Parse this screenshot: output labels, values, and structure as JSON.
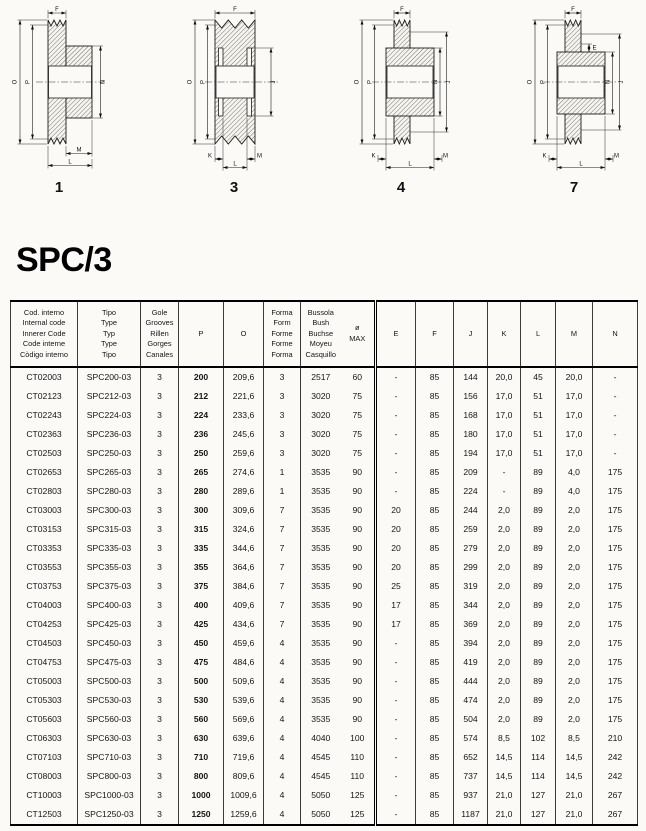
{
  "page": {
    "title": "SPC/3"
  },
  "diagrams": {
    "d1": {
      "number": "1",
      "f": "F",
      "o": "O",
      "p": "P",
      "n": "N",
      "m": "M",
      "l": "L"
    },
    "d3": {
      "number": "3",
      "f": "F",
      "o": "O",
      "p": "P",
      "j": "J",
      "k": "K",
      "l": "L",
      "m": "M"
    },
    "d4": {
      "number": "4",
      "f": "F",
      "o": "O",
      "p": "P",
      "n": "N",
      "j": "J",
      "k": "K",
      "l": "L",
      "m": "M"
    },
    "d7": {
      "number": "7",
      "f": "F",
      "e": "E",
      "o": "O",
      "p": "P",
      "n": "N",
      "j": "J",
      "k": "K",
      "l": "L",
      "m": "M"
    }
  },
  "table": {
    "columns": [
      {
        "id": "code",
        "lines": [
          "Cod. interno",
          "Internal code",
          "Innerer Code",
          "Code interne",
          "Còdigo interno"
        ]
      },
      {
        "id": "type",
        "lines": [
          "Tipo",
          "Type",
          "Typ",
          "Type",
          "Tipo"
        ]
      },
      {
        "id": "grooves",
        "lines": [
          "Gole",
          "Grooves",
          "Rillen",
          "Gorges",
          "Canales"
        ]
      },
      {
        "id": "p",
        "lines": [
          "P"
        ]
      },
      {
        "id": "o",
        "lines": [
          "O"
        ]
      },
      {
        "id": "form",
        "lines": [
          "Forma",
          "Form",
          "Forme",
          "Forme",
          "Forma"
        ]
      },
      {
        "id": "bush",
        "lines": [
          "Bussola",
          "Bush",
          "Buchse",
          "Moyeu",
          "Casquillo"
        ]
      },
      {
        "id": "dmax",
        "lines": [
          "ø",
          "MAX"
        ]
      },
      {
        "id": "e",
        "lines": [
          "E"
        ]
      },
      {
        "id": "f",
        "lines": [
          "F"
        ]
      },
      {
        "id": "j",
        "lines": [
          "J"
        ]
      },
      {
        "id": "k",
        "lines": [
          "K"
        ]
      },
      {
        "id": "l",
        "lines": [
          "L"
        ]
      },
      {
        "id": "m",
        "lines": [
          "M"
        ]
      },
      {
        "id": "n",
        "lines": [
          "N"
        ]
      }
    ],
    "rows": [
      [
        "CT02003",
        "SPC200-03",
        "3",
        "200",
        "209,6",
        "3",
        "2517",
        "60",
        "-",
        "85",
        "144",
        "20,0",
        "45",
        "20,0",
        "-"
      ],
      [
        "CT02123",
        "SPC212-03",
        "3",
        "212",
        "221,6",
        "3",
        "3020",
        "75",
        "-",
        "85",
        "156",
        "17,0",
        "51",
        "17,0",
        "-"
      ],
      [
        "CT02243",
        "SPC224-03",
        "3",
        "224",
        "233,6",
        "3",
        "3020",
        "75",
        "-",
        "85",
        "168",
        "17,0",
        "51",
        "17,0",
        "-"
      ],
      [
        "CT02363",
        "SPC236-03",
        "3",
        "236",
        "245,6",
        "3",
        "3020",
        "75",
        "-",
        "85",
        "180",
        "17,0",
        "51",
        "17,0",
        "-"
      ],
      [
        "CT02503",
        "SPC250-03",
        "3",
        "250",
        "259,6",
        "3",
        "3020",
        "75",
        "-",
        "85",
        "194",
        "17,0",
        "51",
        "17,0",
        "-"
      ],
      [
        "CT02653",
        "SPC265-03",
        "3",
        "265",
        "274,6",
        "1",
        "3535",
        "90",
        "-",
        "85",
        "209",
        "-",
        "89",
        "4,0",
        "175"
      ],
      [
        "CT02803",
        "SPC280-03",
        "3",
        "280",
        "289,6",
        "1",
        "3535",
        "90",
        "-",
        "85",
        "224",
        "-",
        "89",
        "4,0",
        "175"
      ],
      [
        "CT03003",
        "SPC300-03",
        "3",
        "300",
        "309,6",
        "7",
        "3535",
        "90",
        "20",
        "85",
        "244",
        "2,0",
        "89",
        "2,0",
        "175"
      ],
      [
        "CT03153",
        "SPC315-03",
        "3",
        "315",
        "324,6",
        "7",
        "3535",
        "90",
        "20",
        "85",
        "259",
        "2,0",
        "89",
        "2,0",
        "175"
      ],
      [
        "CT03353",
        "SPC335-03",
        "3",
        "335",
        "344,6",
        "7",
        "3535",
        "90",
        "20",
        "85",
        "279",
        "2,0",
        "89",
        "2,0",
        "175"
      ],
      [
        "CT03553",
        "SPC355-03",
        "3",
        "355",
        "364,6",
        "7",
        "3535",
        "90",
        "20",
        "85",
        "299",
        "2,0",
        "89",
        "2,0",
        "175"
      ],
      [
        "CT03753",
        "SPC375-03",
        "3",
        "375",
        "384,6",
        "7",
        "3535",
        "90",
        "25",
        "85",
        "319",
        "2,0",
        "89",
        "2,0",
        "175"
      ],
      [
        "CT04003",
        "SPC400-03",
        "3",
        "400",
        "409,6",
        "7",
        "3535",
        "90",
        "17",
        "85",
        "344",
        "2,0",
        "89",
        "2,0",
        "175"
      ],
      [
        "CT04253",
        "SPC425-03",
        "3",
        "425",
        "434,6",
        "7",
        "3535",
        "90",
        "17",
        "85",
        "369",
        "2,0",
        "89",
        "2,0",
        "175"
      ],
      [
        "CT04503",
        "SPC450-03",
        "3",
        "450",
        "459,6",
        "4",
        "3535",
        "90",
        "-",
        "85",
        "394",
        "2,0",
        "89",
        "2,0",
        "175"
      ],
      [
        "CT04753",
        "SPC475-03",
        "3",
        "475",
        "484,6",
        "4",
        "3535",
        "90",
        "-",
        "85",
        "419",
        "2,0",
        "89",
        "2,0",
        "175"
      ],
      [
        "CT05003",
        "SPC500-03",
        "3",
        "500",
        "509,6",
        "4",
        "3535",
        "90",
        "-",
        "85",
        "444",
        "2,0",
        "89",
        "2,0",
        "175"
      ],
      [
        "CT05303",
        "SPC530-03",
        "3",
        "530",
        "539,6",
        "4",
        "3535",
        "90",
        "-",
        "85",
        "474",
        "2,0",
        "89",
        "2,0",
        "175"
      ],
      [
        "CT05603",
        "SPC560-03",
        "3",
        "560",
        "569,6",
        "4",
        "3535",
        "90",
        "-",
        "85",
        "504",
        "2,0",
        "89",
        "2,0",
        "175"
      ],
      [
        "CT06303",
        "SPC630-03",
        "3",
        "630",
        "639,6",
        "4",
        "4040",
        "100",
        "-",
        "85",
        "574",
        "8,5",
        "102",
        "8,5",
        "210"
      ],
      [
        "CT07103",
        "SPC710-03",
        "3",
        "710",
        "719,6",
        "4",
        "4545",
        "110",
        "-",
        "85",
        "652",
        "14,5",
        "114",
        "14,5",
        "242"
      ],
      [
        "CT08003",
        "SPC800-03",
        "3",
        "800",
        "809,6",
        "4",
        "4545",
        "110",
        "-",
        "85",
        "737",
        "14,5",
        "114",
        "14,5",
        "242"
      ],
      [
        "CT10003",
        "SPC1000-03",
        "3",
        "1000",
        "1009,6",
        "4",
        "5050",
        "125",
        "-",
        "85",
        "937",
        "21,0",
        "127",
        "21,0",
        "267"
      ],
      [
        "CT12503",
        "SPC1250-03",
        "3",
        "1250",
        "1259,6",
        "4",
        "5050",
        "125",
        "-",
        "85",
        "1187",
        "21,0",
        "127",
        "21,0",
        "267"
      ]
    ]
  }
}
